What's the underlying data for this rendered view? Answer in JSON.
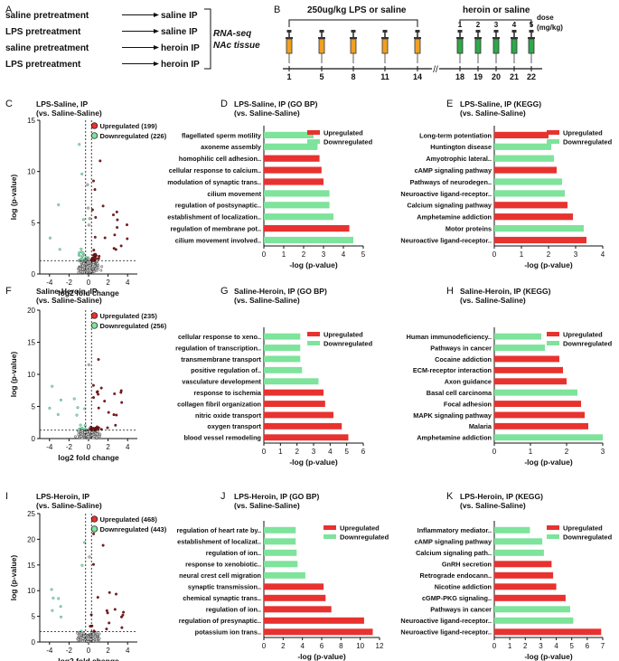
{
  "colors": {
    "up": "#e8322f",
    "down": "#7ee39b",
    "up_dark": "#8b1a1a",
    "down_dark": "#2e7d5b",
    "axis": "#111111",
    "syringe_orange": "#f0a020",
    "syringe_green": "#2fa84a"
  },
  "panelA": {
    "letter": "A",
    "rows": [
      {
        "pre": "saline pretreatment",
        "post": "saline IP"
      },
      {
        "pre": "LPS pretreatment",
        "post": "saline IP"
      },
      {
        "pre": "saline pretreatment",
        "post": "heroin IP"
      },
      {
        "pre": "LPS pretreatment",
        "post": "heroin IP"
      }
    ],
    "bracket_label_1": "RNA-seq",
    "bracket_label_2": "NAc tissue"
  },
  "panelB": {
    "letter": "B",
    "lps_label": "250ug/kg LPS  or saline",
    "heroin_label": "heroin or saline",
    "dose_label_1": "dose",
    "dose_label_2": "(mg/kg)",
    "lps_days": [
      "1",
      "5",
      "8",
      "11",
      "14"
    ],
    "heroin_days": [
      "18",
      "19",
      "20",
      "21",
      "22"
    ],
    "heroin_doses": [
      "1",
      "2",
      "3",
      "4",
      "5"
    ]
  },
  "chart_data": [
    {
      "id": "C",
      "type": "scatter",
      "letter": "C",
      "title_1": "LPS-Saline, IP",
      "title_2": "(vs. Saline-Saline)",
      "xlabel": "log2 fold change",
      "ylabel": "log (p-value)",
      "xlim": [
        -5,
        5
      ],
      "ylim": [
        0,
        15
      ],
      "xticks": [
        "-4",
        "-2",
        "0",
        "2",
        "4"
      ],
      "yticks": [
        "0",
        "5",
        "10",
        "15"
      ],
      "legend_up": "Upregulated (199)",
      "legend_down": "Downregulated (226)",
      "threshold": 1.3,
      "seed": 7
    },
    {
      "id": "D",
      "type": "bar",
      "letter": "D",
      "title_1": "LPS-Saline, IP (GO BP)",
      "title_2": "(vs. Saline-Saline)",
      "xlabel": "-log (p-value)",
      "xlim": [
        0,
        5
      ],
      "xticks": [
        "0",
        "1",
        "2",
        "3",
        "4",
        "5"
      ],
      "legend_up": "Upregulated",
      "legend_down": "Downregulated",
      "bars": [
        {
          "label": "flagellated sperm motility",
          "value": 2.5,
          "dir": "down"
        },
        {
          "label": "axoneme assembly",
          "value": 2.7,
          "dir": "down"
        },
        {
          "label": "homophilic cell adhesion..",
          "value": 2.8,
          "dir": "up"
        },
        {
          "label": "cellular response to calcium..",
          "value": 2.9,
          "dir": "up"
        },
        {
          "label": "modulation of synaptic trans..",
          "value": 3.0,
          "dir": "up"
        },
        {
          "label": "cilium movement",
          "value": 3.3,
          "dir": "down"
        },
        {
          "label": "regulation of postsynaptic..",
          "value": 3.3,
          "dir": "down"
        },
        {
          "label": "establishment of localization..",
          "value": 3.5,
          "dir": "down"
        },
        {
          "label": "regulation of membrane pot..",
          "value": 4.3,
          "dir": "up"
        },
        {
          "label": "cilium movement involved..",
          "value": 4.5,
          "dir": "down"
        }
      ]
    },
    {
      "id": "E",
      "type": "bar",
      "letter": "E",
      "title_1": "LPS-Saline, IP (KEGG)",
      "title_2": "(vs. Saline-Saline)",
      "xlabel": "-log (p-value)",
      "xlim": [
        0,
        4
      ],
      "xticks": [
        "0",
        "1",
        "2",
        "3",
        "4"
      ],
      "legend_up": "Upregulated",
      "legend_down": "Downregulated",
      "bars": [
        {
          "label": "Long-term potentiation",
          "value": 2.0,
          "dir": "up"
        },
        {
          "label": "Huntington disease",
          "value": 2.1,
          "dir": "down"
        },
        {
          "label": "Amyotrophic lateral..",
          "value": 2.2,
          "dir": "down"
        },
        {
          "label": "cAMP signaling pathway",
          "value": 2.3,
          "dir": "up"
        },
        {
          "label": "Pathways of neurodegen..",
          "value": 2.5,
          "dir": "down"
        },
        {
          "label": "Neuroactive ligand-receptor..",
          "value": 2.6,
          "dir": "down"
        },
        {
          "label": "Calcium signaling pathway",
          "value": 2.7,
          "dir": "up"
        },
        {
          "label": "Amphetamine addiction",
          "value": 2.9,
          "dir": "up"
        },
        {
          "label": "Motor proteins",
          "value": 3.3,
          "dir": "down"
        },
        {
          "label": "Neuroactive ligand-receptor..",
          "value": 3.4,
          "dir": "up"
        }
      ]
    },
    {
      "id": "F",
      "type": "scatter",
      "letter": "F",
      "title_1": "Saline-Heroin, IP",
      "title_2": "(vs. Saline-Saline)",
      "xlabel": "log2 fold change",
      "ylabel": "log (p-value)",
      "xlim": [
        -5,
        5
      ],
      "ylim": [
        0,
        20
      ],
      "xticks": [
        "-4",
        "-2",
        "0",
        "2",
        "4"
      ],
      "yticks": [
        "0",
        "5",
        "10",
        "15",
        "20"
      ],
      "legend_up": "Upregulated (235)",
      "legend_down": "Downregulated (256)",
      "threshold": 1.3,
      "seed": 21
    },
    {
      "id": "G",
      "type": "bar",
      "letter": "G",
      "title_1": "Saline-Heroin, IP (GO BP)",
      "title_2": "(vs. Saline-Saline)",
      "xlabel": "-log (p-value)",
      "xlim": [
        0,
        6
      ],
      "xticks": [
        "0",
        "1",
        "2",
        "3",
        "4",
        "5",
        "6"
      ],
      "legend_up": "Upregulated",
      "legend_down": "Downregulated",
      "bars": [
        {
          "label": "cellular response to xeno..",
          "value": 2.2,
          "dir": "down"
        },
        {
          "label": "regulation of transcription..",
          "value": 2.2,
          "dir": "down"
        },
        {
          "label": "transmembrane transport",
          "value": 2.2,
          "dir": "down"
        },
        {
          "label": "positive regulation of..",
          "value": 2.3,
          "dir": "down"
        },
        {
          "label": "vasculature development",
          "value": 3.3,
          "dir": "down"
        },
        {
          "label": "response to ischemia",
          "value": 3.6,
          "dir": "up"
        },
        {
          "label": "collagen fibril organization",
          "value": 3.7,
          "dir": "up"
        },
        {
          "label": "nitric oxide transport",
          "value": 4.2,
          "dir": "up"
        },
        {
          "label": "oxygen transport",
          "value": 4.7,
          "dir": "up"
        },
        {
          "label": "blood vessel remodeling",
          "value": 5.1,
          "dir": "up"
        }
      ]
    },
    {
      "id": "H",
      "type": "bar",
      "letter": "H",
      "title_1": "Saline-Heroin, IP (KEGG)",
      "title_2": "(vs. Saline-Saline)",
      "xlabel": "-log (p-value)",
      "xlim": [
        0,
        3
      ],
      "xticks": [
        "0",
        "1",
        "2",
        "3"
      ],
      "legend_up": "Upregulated",
      "legend_down": "Downregulated",
      "bars": [
        {
          "label": "Human immunodeficiency..",
          "value": 1.3,
          "dir": "down"
        },
        {
          "label": "Pathways in cancer",
          "value": 1.4,
          "dir": "down"
        },
        {
          "label": "Cocaine addiction",
          "value": 1.8,
          "dir": "up"
        },
        {
          "label": "ECM-receptor interaction",
          "value": 1.9,
          "dir": "up"
        },
        {
          "label": "Axon guidance",
          "value": 2.0,
          "dir": "up"
        },
        {
          "label": "Basal cell carcinoma",
          "value": 2.3,
          "dir": "down"
        },
        {
          "label": "Focal adhesion",
          "value": 2.4,
          "dir": "up"
        },
        {
          "label": "MAPK signaling pathway",
          "value": 2.5,
          "dir": "up"
        },
        {
          "label": "Malaria",
          "value": 2.6,
          "dir": "up"
        },
        {
          "label": "Amphetamine addiction",
          "value": 3.0,
          "dir": "down"
        }
      ]
    },
    {
      "id": "I",
      "type": "scatter",
      "letter": "I",
      "title_1": "LPS-Heroin, IP",
      "title_2": "(vs. Saline-Saline)",
      "xlabel": "log2 fold change",
      "ylabel": "log (p-value)",
      "xlim": [
        -5,
        5
      ],
      "ylim": [
        0,
        25
      ],
      "xticks": [
        "-4",
        "-2",
        "0",
        "2",
        "4"
      ],
      "yticks": [
        "0",
        "5",
        "10",
        "15",
        "20",
        "25"
      ],
      "legend_up": "Upregulated (468)",
      "legend_down": "Downregulated (443)",
      "threshold": 2.0,
      "seed": 43
    },
    {
      "id": "J",
      "type": "bar",
      "letter": "J",
      "title_1": "LPS-Heroin, IP (GO BP)",
      "title_2": "(vs. Saline-Saline)",
      "xlabel": "-log (p-value)",
      "xlim": [
        0,
        12
      ],
      "xticks": [
        "0",
        "2",
        "4",
        "6",
        "8",
        "10",
        "12"
      ],
      "legend_up": "Upregulated",
      "legend_down": "Downregulated",
      "bars": [
        {
          "label": "regulation of heart rate by..",
          "value": 3.3,
          "dir": "down"
        },
        {
          "label": "establishment of localizat..",
          "value": 3.3,
          "dir": "down"
        },
        {
          "label": "regulation of ion..",
          "value": 3.4,
          "dir": "down"
        },
        {
          "label": "response to xenobiotic..",
          "value": 3.5,
          "dir": "down"
        },
        {
          "label": "neural crest cell migration",
          "value": 4.3,
          "dir": "down"
        },
        {
          "label": "synaptic transmission..",
          "value": 6.2,
          "dir": "up"
        },
        {
          "label": "chemical synaptic trans..",
          "value": 6.4,
          "dir": "up"
        },
        {
          "label": "regulation of ion..",
          "value": 7.0,
          "dir": "up"
        },
        {
          "label": "regulation of presynaptic..",
          "value": 10.4,
          "dir": "up"
        },
        {
          "label": "potassium ion trans..",
          "value": 11.3,
          "dir": "up"
        }
      ]
    },
    {
      "id": "K",
      "type": "bar",
      "letter": "K",
      "title_1": "LPS-Heroin, IP (KEGG)",
      "title_2": "(vs. Saline-Saline)",
      "xlabel": "-log (p-value)",
      "xlim": [
        0,
        7
      ],
      "xticks": [
        "0",
        "1",
        "2",
        "3",
        "4",
        "5",
        "6",
        "7"
      ],
      "legend_up": "Upregulated",
      "legend_down": "Downregulated",
      "bars": [
        {
          "label": "Inflammatory mediator..",
          "value": 2.3,
          "dir": "down"
        },
        {
          "label": "cAMP signaling pathway",
          "value": 3.1,
          "dir": "down"
        },
        {
          "label": "Calcium signaling path..",
          "value": 3.2,
          "dir": "down"
        },
        {
          "label": "GnRH secretion",
          "value": 3.7,
          "dir": "up"
        },
        {
          "label": "Retrograde endocann..",
          "value": 3.8,
          "dir": "up"
        },
        {
          "label": "Nicotine addiction",
          "value": 4.0,
          "dir": "up"
        },
        {
          "label": "cGMP-PKG signaling..",
          "value": 4.6,
          "dir": "up"
        },
        {
          "label": "Pathways in cancer",
          "value": 4.9,
          "dir": "down"
        },
        {
          "label": "Neuroactive ligand-receptor..",
          "value": 5.1,
          "dir": "down"
        },
        {
          "label": "Neuroactive ligand-receptor..",
          "value": 6.9,
          "dir": "up"
        }
      ]
    }
  ]
}
